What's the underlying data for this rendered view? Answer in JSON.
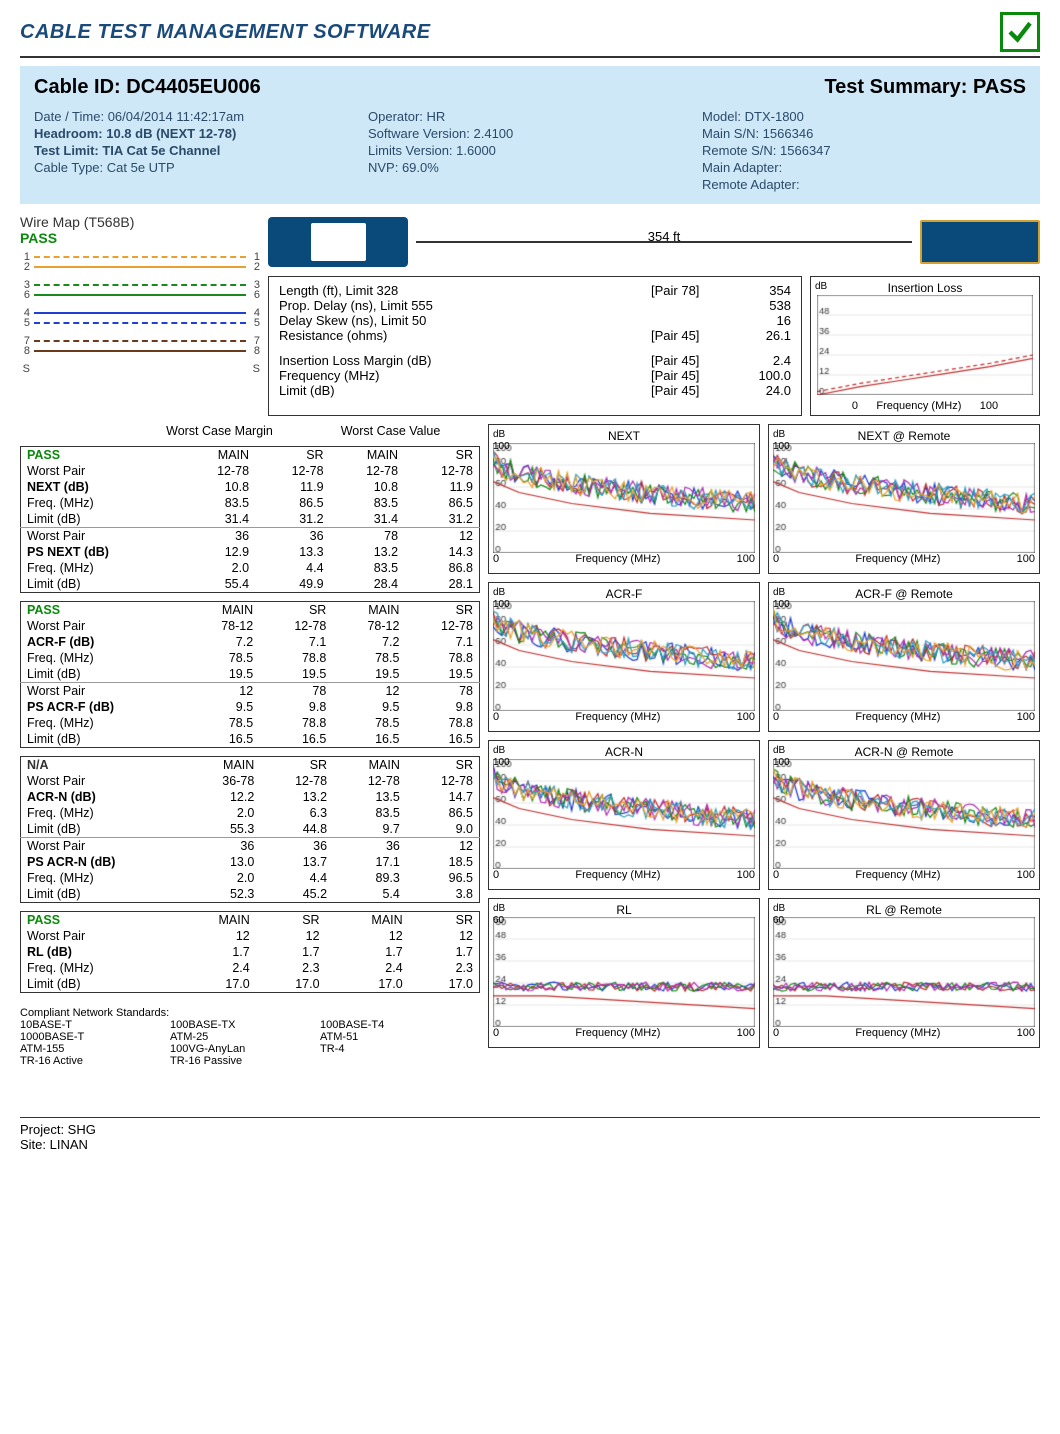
{
  "title": "CABLE TEST MANAGEMENT SOFTWARE",
  "header": {
    "cable_id_label": "Cable ID:",
    "cable_id": "DC4405EU006",
    "summary_label": "Test Summary:",
    "summary": "PASS",
    "col1": {
      "datetime": "Date / Time: 06/04/2014 11:42:17am",
      "headroom": "Headroom: 10.8 dB (NEXT 12-78)",
      "test_limit": "Test Limit: TIA Cat 5e Channel",
      "cable_type": "Cable Type: Cat 5e UTP"
    },
    "col2": {
      "operator": "Operator: HR",
      "sw_ver": "Software Version: 2.4100",
      "lim_ver": "Limits Version: 1.6000",
      "nvp": "NVP: 69.0%"
    },
    "col3": {
      "model": "Model: DTX-1800",
      "main_sn": "Main S/N: 1566346",
      "remote_sn": "Remote S/N: 1566347",
      "main_adapter": "Main Adapter:",
      "remote_adapter": "Remote Adapter:"
    }
  },
  "wiremap": {
    "title": "Wire Map (T568B)",
    "pass": "PASS",
    "pairs": [
      {
        "n": "1",
        "color": "#e8a030",
        "style": "dash"
      },
      {
        "n": "2",
        "color": "#e8a030",
        "style": "solid"
      },
      {
        "n": "3",
        "color": "#1a8a1a",
        "style": "dash"
      },
      {
        "n": "6",
        "color": "#1a8a1a",
        "style": "solid"
      },
      {
        "n": "4",
        "color": "#2040d0",
        "style": "solid"
      },
      {
        "n": "5",
        "color": "#2040d0",
        "style": "dash"
      },
      {
        "n": "7",
        "color": "#6a3a1a",
        "style": "dash"
      },
      {
        "n": "8",
        "color": "#6a3a1a",
        "style": "solid"
      },
      {
        "n": "S",
        "color": "#999",
        "style": "none"
      }
    ]
  },
  "cable_length_label": "354 ft",
  "measurements": [
    {
      "label": "Length (ft), Limit 328",
      "pair": "[Pair 78]",
      "val": "354"
    },
    {
      "label": "Prop. Delay (ns), Limit 555",
      "pair": "",
      "val": "538"
    },
    {
      "label": "Delay Skew (ns), Limit 50",
      "pair": "",
      "val": "16"
    },
    {
      "label": "Resistance (ohms)",
      "pair": "[Pair 45]",
      "val": "26.1"
    }
  ],
  "measurements2": [
    {
      "label": "Insertion Loss Margin (dB)",
      "pair": "[Pair 45]",
      "val": "2.4"
    },
    {
      "label": "Frequency (MHz)",
      "pair": "[Pair 45]",
      "val": "100.0"
    },
    {
      "label": "Limit (dB)",
      "pair": "[Pair 45]",
      "val": "24.0"
    }
  ],
  "ins_loss_chart": {
    "title": "Insertion Loss",
    "ylabel": "dB",
    "xlabel": "Frequency (MHz)",
    "xlim": [
      0,
      100
    ],
    "ylim": [
      0,
      60
    ],
    "yticks": [
      0,
      12,
      24,
      36,
      48
    ],
    "series": [
      {
        "color": "#c03030",
        "pts": [
          [
            0,
            0
          ],
          [
            20,
            5
          ],
          [
            40,
            9
          ],
          [
            60,
            13
          ],
          [
            80,
            17
          ],
          [
            100,
            22
          ]
        ]
      },
      {
        "color": "#c03030",
        "dash": true,
        "pts": [
          [
            0,
            2
          ],
          [
            20,
            7
          ],
          [
            40,
            11
          ],
          [
            60,
            15
          ],
          [
            80,
            19
          ],
          [
            100,
            24
          ]
        ]
      }
    ]
  },
  "table_super": {
    "wcm": "Worst Case Margin",
    "wcv": "Worst Case Value"
  },
  "tables": [
    {
      "status": "PASS",
      "cols": [
        "MAIN",
        "SR",
        "MAIN",
        "SR"
      ],
      "rows": [
        [
          "Worst Pair",
          "12-78",
          "12-78",
          "12-78",
          "12-78"
        ],
        [
          "NEXT (dB)",
          "10.8",
          "11.9",
          "10.8",
          "11.9",
          true
        ],
        [
          "Freq. (MHz)",
          "83.5",
          "86.5",
          "83.5",
          "86.5"
        ],
        [
          "Limit (dB)",
          "31.4",
          "31.2",
          "31.4",
          "31.2"
        ]
      ],
      "rows2": [
        [
          "Worst Pair",
          "36",
          "36",
          "78",
          "12"
        ],
        [
          "PS NEXT (dB)",
          "12.9",
          "13.3",
          "13.2",
          "14.3",
          true
        ],
        [
          "Freq. (MHz)",
          "2.0",
          "4.4",
          "83.5",
          "86.8"
        ],
        [
          "Limit (dB)",
          "55.4",
          "49.9",
          "28.4",
          "28.1"
        ]
      ]
    },
    {
      "status": "PASS",
      "cols": [
        "MAIN",
        "SR",
        "MAIN",
        "SR"
      ],
      "rows": [
        [
          "Worst Pair",
          "78-12",
          "12-78",
          "78-12",
          "12-78"
        ],
        [
          "ACR-F (dB)",
          "7.2",
          "7.1",
          "7.2",
          "7.1",
          true
        ],
        [
          "Freq. (MHz)",
          "78.5",
          "78.8",
          "78.5",
          "78.8"
        ],
        [
          "Limit (dB)",
          "19.5",
          "19.5",
          "19.5",
          "19.5"
        ]
      ],
      "rows2": [
        [
          "Worst Pair",
          "12",
          "78",
          "12",
          "78"
        ],
        [
          "PS ACR-F (dB)",
          "9.5",
          "9.8",
          "9.5",
          "9.8",
          true
        ],
        [
          "Freq. (MHz)",
          "78.5",
          "78.8",
          "78.5",
          "78.8"
        ],
        [
          "Limit (dB)",
          "16.5",
          "16.5",
          "16.5",
          "16.5"
        ]
      ]
    },
    {
      "status": "N/A",
      "status_color": "#333",
      "cols": [
        "MAIN",
        "SR",
        "MAIN",
        "SR"
      ],
      "rows": [
        [
          "Worst Pair",
          "36-78",
          "12-78",
          "12-78",
          "12-78"
        ],
        [
          "ACR-N (dB)",
          "12.2",
          "13.2",
          "13.5",
          "14.7",
          true
        ],
        [
          "Freq. (MHz)",
          "2.0",
          "6.3",
          "83.5",
          "86.5"
        ],
        [
          "Limit (dB)",
          "55.3",
          "44.8",
          "9.7",
          "9.0"
        ]
      ],
      "rows2": [
        [
          "Worst Pair",
          "36",
          "36",
          "36",
          "12"
        ],
        [
          "PS ACR-N (dB)",
          "13.0",
          "13.7",
          "17.1",
          "18.5",
          true
        ],
        [
          "Freq. (MHz)",
          "2.0",
          "4.4",
          "89.3",
          "96.5"
        ],
        [
          "Limit (dB)",
          "52.3",
          "45.2",
          "5.4",
          "3.8"
        ]
      ]
    },
    {
      "status": "PASS",
      "cols": [
        "MAIN",
        "SR",
        "MAIN",
        "SR"
      ],
      "rows": [
        [
          "Worst Pair",
          "12",
          "12",
          "12",
          "12"
        ],
        [
          "RL (dB)",
          "1.7",
          "1.7",
          "1.7",
          "1.7",
          true
        ],
        [
          "Freq. (MHz)",
          "2.4",
          "2.3",
          "2.4",
          "2.3"
        ],
        [
          "Limit (dB)",
          "17.0",
          "17.0",
          "17.0",
          "17.0"
        ]
      ]
    }
  ],
  "charts": [
    {
      "title": "NEXT",
      "type": "noise"
    },
    {
      "title": "NEXT @ Remote",
      "type": "noise"
    },
    {
      "title": "ACR-F",
      "type": "noise"
    },
    {
      "title": "ACR-F @ Remote",
      "type": "noise"
    },
    {
      "title": "ACR-N",
      "type": "noise"
    },
    {
      "title": "ACR-N @ Remote",
      "type": "noise"
    },
    {
      "title": "RL",
      "type": "rl"
    },
    {
      "title": "RL @ Remote",
      "type": "rl"
    }
  ],
  "chart_common": {
    "ylabel": "dB",
    "xlabel": "Frequency (MHz)",
    "xlim": [
      0,
      100
    ],
    "ylim": [
      0,
      100
    ],
    "yticks": [
      0,
      20,
      40,
      60,
      80,
      100
    ],
    "xticks": [
      0,
      100
    ],
    "colors": [
      "#2040d0",
      "#c03030",
      "#1a8a1a",
      "#b030b0",
      "#30a0c0",
      "#e8a030"
    ],
    "limit_color": "#c03030"
  },
  "rl_chart": {
    "ylim": [
      0,
      60
    ],
    "yticks": [
      0,
      12,
      24,
      36,
      48,
      60
    ]
  },
  "standards": {
    "header": "Compliant Network Standards:",
    "items": [
      [
        "10BASE-T",
        "100BASE-TX",
        "100BASE-T4"
      ],
      [
        "1000BASE-T",
        "ATM-25",
        "ATM-51"
      ],
      [
        "ATM-155",
        "100VG-AnyLan",
        "TR-4"
      ],
      [
        "TR-16 Active",
        "TR-16 Passive",
        ""
      ]
    ]
  },
  "footer": {
    "project": "Project: SHG",
    "site": "Site: LINAN"
  }
}
